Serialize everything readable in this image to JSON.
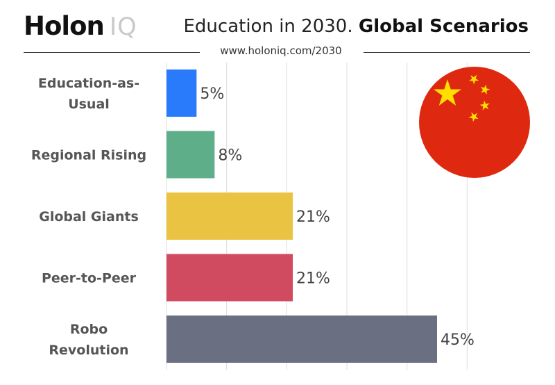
{
  "brand": {
    "holon": "Holon",
    "iq": "IQ"
  },
  "header": {
    "title_main": "Education in 2030.",
    "title_bold": "Global Scenarios",
    "url": "www.holoniq.com/2030"
  },
  "flag_icon": "china-flag-icon",
  "colors": {
    "flag_red": "#de2910",
    "flag_star": "#ffde00"
  },
  "chart_data": {
    "type": "bar",
    "orientation": "horizontal",
    "categories": [
      "Education-as-Usual",
      "Regional Rising",
      "Global Giants",
      "Peer-to-Peer",
      "Robo Revolution"
    ],
    "category_lines": [
      [
        "Education-as-",
        "Usual"
      ],
      [
        "Regional Rising"
      ],
      [
        "Global Giants"
      ],
      [
        "Peer-to-Peer"
      ],
      [
        "Robo",
        "Revolution"
      ]
    ],
    "values": [
      5,
      8,
      21,
      21,
      45
    ],
    "value_labels": [
      "5%",
      "8%",
      "21%",
      "21%",
      "45%"
    ],
    "colors": [
      "#2a7bfb",
      "#5fae8a",
      "#ebc342",
      "#d04b60",
      "#6b6f82"
    ],
    "xlim": [
      0,
      50
    ],
    "grid": true,
    "title": "",
    "xlabel": "",
    "ylabel": ""
  }
}
